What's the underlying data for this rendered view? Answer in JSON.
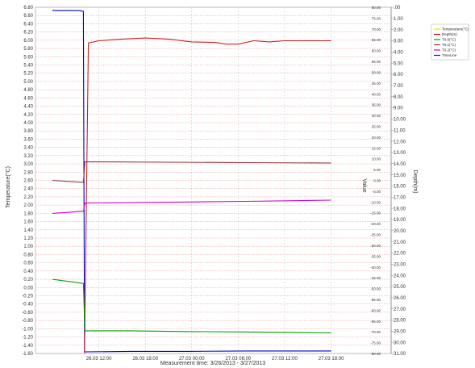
{
  "chart_data": {
    "type": "line",
    "xlabel": "Measurement time: 3/26/2013 - 3/27/2013",
    "ylabel_left": "Temperature(°C)",
    "ylabel_right": "Depth(m)",
    "ylabel_mid": "Value",
    "x_range_hours": [
      0,
      57
    ],
    "x_ticks": [
      {
        "h": 12,
        "label": "26.03 12:00"
      },
      {
        "h": 24,
        "label": "26.03 18:00"
      },
      {
        "h": 36,
        "label": "27.03 00:00"
      },
      {
        "h": 48,
        "label": "27.03 06:00"
      },
      {
        "h": 60,
        "label": "27.03 12:00"
      },
      {
        "h": 72,
        "label": "27.03 18:00"
      }
    ],
    "left_axis": {
      "min": -1.6,
      "max": 6.8,
      "step": 0.2
    },
    "mid_axis": {
      "min": -80,
      "max": 80,
      "step": 5,
      "labels": [
        "80.00",
        "75.00",
        "70.00",
        "65.00",
        "60.00",
        "55.00",
        "50.00",
        "45.00",
        "40.00",
        "35.00",
        "30.00",
        "25.00",
        "20.00",
        "15.00",
        "10.00",
        "5.00",
        "0.00",
        "-5.00",
        "-10.00",
        "-15.00",
        "-20.00",
        "-25.00",
        "-30.00",
        "-35.00",
        "-40.00",
        "-45.00",
        "-50.00",
        "-55.00",
        "-60.00",
        "-65.00",
        "-70.00",
        "-75.00",
        "-80.00"
      ]
    },
    "right_axis": {
      "min": 0,
      "max": 31,
      "step": 1,
      "labels": [
        ".00",
        "1.00",
        "2.00",
        "3.00",
        "4.00",
        "5.00",
        "6.00",
        "7.00",
        "8.00",
        "9.00",
        "10.00",
        "11.00",
        "12.00",
        "13.00",
        "14.00",
        "15.00",
        "16.00",
        "17.00",
        "18.00",
        "19.00",
        "20.00",
        "21.00",
        "22.00",
        "23.00",
        "24.00",
        "25.00",
        "26.00",
        "27.00",
        "28.00",
        "29.00",
        "30.00",
        "31.00"
      ]
    },
    "legend": [
      {
        "name": "Temperature(°C)",
        "color": "#e6e600"
      },
      {
        "name": "Depth(m)",
        "color": "#c00000"
      },
      {
        "name": "T0.0(°C)",
        "color": "#00a000"
      },
      {
        "name": "T0.1(°C)",
        "color": "#8b3a3a"
      },
      {
        "name": "T0.2(°C)",
        "color": "#cc00cc"
      },
      {
        "name": "TimeLine",
        "color": "#0000cc"
      }
    ],
    "series": [
      {
        "name": "Temperature(°C)",
        "color": "#0000cc",
        "axis": "left",
        "points": [
          [
            0,
            6.72
          ],
          [
            7,
            6.72
          ],
          [
            8,
            6.7
          ],
          [
            8.3,
            -1.56
          ],
          [
            20,
            -1.55
          ],
          [
            35,
            -1.55
          ],
          [
            50,
            -1.54
          ],
          [
            72,
            -1.54
          ]
        ]
      },
      {
        "name": "Depth(m)",
        "color": "#d02020",
        "axis": "right",
        "points": [
          [
            8.3,
            31
          ],
          [
            9.3,
            3.2
          ],
          [
            12,
            3.0
          ],
          [
            18,
            2.85
          ],
          [
            24,
            2.75
          ],
          [
            30,
            2.85
          ],
          [
            36,
            3.1
          ],
          [
            42,
            3.15
          ],
          [
            45,
            3.3
          ],
          [
            48,
            3.3
          ],
          [
            52,
            3.0
          ],
          [
            56,
            3.1
          ],
          [
            60,
            3.0
          ],
          [
            66,
            3.0
          ],
          [
            72,
            3.0
          ]
        ]
      },
      {
        "name": "T0.0(°C)",
        "color": "#00a000",
        "axis": "left",
        "points": [
          [
            0,
            0.2
          ],
          [
            8,
            0.1
          ],
          [
            8.4,
            -1.05
          ],
          [
            20,
            -1.05
          ],
          [
            36,
            -1.07
          ],
          [
            52,
            -1.08
          ],
          [
            72,
            -1.1
          ]
        ]
      },
      {
        "name": "T0.1(°C)",
        "color": "#8b3a3a",
        "axis": "left",
        "points": [
          [
            0,
            2.6
          ],
          [
            8,
            2.55
          ],
          [
            8.4,
            3.05
          ],
          [
            30,
            3.04
          ],
          [
            50,
            3.03
          ],
          [
            72,
            3.02
          ]
        ]
      },
      {
        "name": "T0.2(°C)",
        "color": "#cc00cc",
        "axis": "left",
        "points": [
          [
            0,
            1.8
          ],
          [
            8,
            1.85
          ],
          [
            8.4,
            2.05
          ],
          [
            30,
            2.07
          ],
          [
            50,
            2.09
          ],
          [
            72,
            2.12
          ]
        ]
      }
    ]
  }
}
